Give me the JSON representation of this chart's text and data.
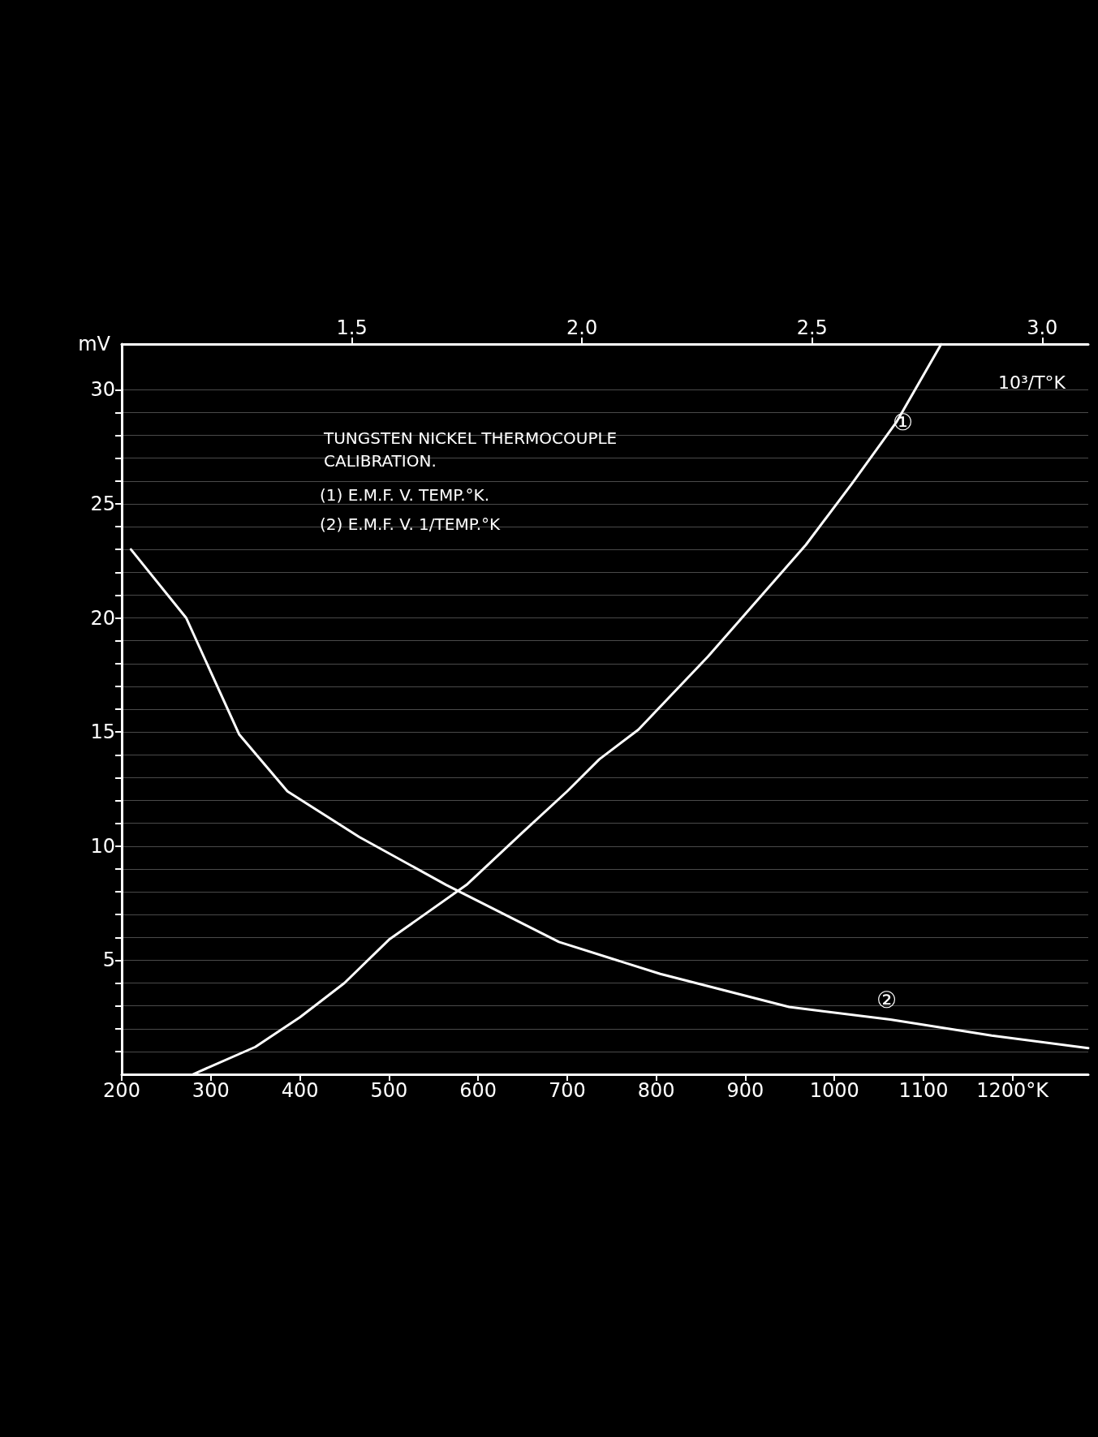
{
  "chart_data": {
    "type": "line",
    "title": "TUNGSTEN NICKEL THERMOCOUPLE",
    "subtitle": "CALIBRATION.",
    "ylabel": "mV",
    "x2label": "10³/T°K",
    "xlim": [
      200,
      1285
    ],
    "xticks": [
      200,
      300,
      400,
      500,
      600,
      700,
      800,
      900,
      1000,
      1100,
      {
        "value": 1200,
        "label": "1200°K"
      }
    ],
    "x2lim": [
      1.0,
      3.1
    ],
    "x2ticks": [
      1.5,
      {
        "value": 2.0,
        "label": "2.0"
      },
      2.5,
      {
        "value": 3.0,
        "label": "3.0"
      }
    ],
    "ylim": [
      0,
      32
    ],
    "yticks": [
      {
        "value": 1,
        "label": null
      },
      {
        "value": 2,
        "label": null
      },
      {
        "value": 3,
        "label": null
      },
      {
        "value": 4,
        "label": null
      },
      5,
      {
        "value": 6,
        "label": null
      },
      {
        "value": 7,
        "label": null
      },
      {
        "value": 8,
        "label": null
      },
      {
        "value": 9,
        "label": null
      },
      10,
      {
        "value": 11,
        "label": null
      },
      {
        "value": 12,
        "label": null
      },
      {
        "value": 13,
        "label": null
      },
      {
        "value": 14,
        "label": null
      },
      15,
      {
        "value": 16,
        "label": null
      },
      {
        "value": 17,
        "label": null
      },
      {
        "value": 18,
        "label": null
      },
      {
        "value": 19,
        "label": null
      },
      20,
      {
        "value": 21,
        "label": null
      },
      {
        "value": 22,
        "label": null
      },
      {
        "value": 23,
        "label": null
      },
      {
        "value": 24,
        "label": null
      },
      25,
      {
        "value": 26,
        "label": null
      },
      {
        "value": 27,
        "label": null
      },
      {
        "value": 28,
        "label": null
      },
      {
        "value": 29,
        "label": null
      },
      30
    ],
    "grid": "y",
    "marker": "none",
    "line_style": "solid",
    "series": [
      {
        "color": "#ffffff",
        "x": [
          280,
          350,
          400,
          450,
          500,
          587,
          650,
          700,
          736,
          780,
          858,
          968,
          1020,
          1070,
          1120
        ],
        "values": [
          0,
          1.2,
          2.5,
          4.0,
          5.9,
          8.3,
          10.6,
          12.4,
          13.8,
          15.1,
          18.3,
          23.2,
          25.9,
          28.6,
          32.0
        ]
      },
      {
        "color": "#ffffff",
        "axis": "x2",
        "x": [
          1.02,
          1.14,
          1.255,
          1.36,
          1.516,
          1.705,
          1.95,
          2.17,
          2.45,
          2.67,
          2.89,
          3.1
        ],
        "values": [
          23.0,
          20.0,
          14.9,
          12.4,
          10.4,
          8.3,
          5.8,
          4.4,
          2.95,
          2.4,
          1.7,
          1.15
        ]
      }
    ],
    "annotations": [
      "(1) E.M.F. V. TEMP.°K.",
      "(2) E.M.F. V. 1/TEMP.°K",
      "①",
      "②"
    ]
  }
}
